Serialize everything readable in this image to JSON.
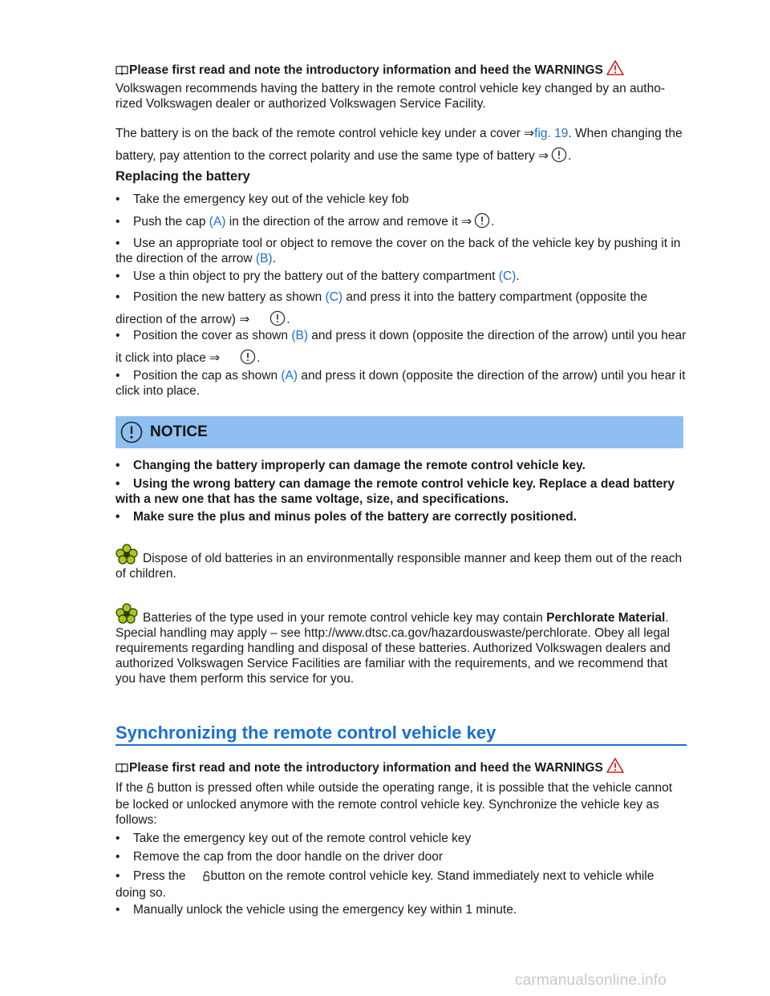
{
  "battery_section": {
    "intro": "Please first read and note the introductory information and heed the WARNINGS",
    "para1": "Volkswagen recommends having the battery in the remote control vehicle key changed by an autho-rized Volkswagen dealer or authorized Volkswagen Service Facility.",
    "para2_a": "The battery is on the back of the remote control vehicle key under a cover ⇒",
    "para2_fig": "fig. 19",
    "para2_b": ". When changing the battery, pay attention to the correct polarity and use the same type of battery ⇒",
    "para2_c": ".",
    "heading": "Replacing the battery",
    "steps": {
      "s1": "Take the emergency key out of the vehicle key fob",
      "s2_a": "Push the cap ",
      "s2_ref": "(A)",
      "s2_b": " in the direction of the arrow and remove it ⇒",
      "s2_c": ".",
      "s3_a": "Use an appropriate tool or object to remove the cover on the back of the vehicle key by pushing it in the direction of the arrow ",
      "s3_ref": "(B)",
      "s3_b": ".",
      "s4_a": "Use a thin object to pry the battery out of the battery compartment ",
      "s4_ref": "(C)",
      "s4_b": ".",
      "s5_a": "Position the new battery as shown ",
      "s5_ref": "(C)",
      "s5_b": " and press it into the battery compartment (opposite the direction of the arrow) ⇒",
      "s5_c": ".",
      "s6_a": "Position the cover as shown ",
      "s6_ref": "(B)",
      "s6_b": " and press it down (opposite the direction of the arrow) until you hear it click into place ⇒",
      "s6_c": ".",
      "s7_a": "Position the cap as shown ",
      "s7_ref": "(A)",
      "s7_b": " and press it down (opposite the direction of the arrow) until you hear it click into place."
    }
  },
  "notice": {
    "title": "NOTICE",
    "items": [
      "Changing the battery improperly can damage the remote control vehicle key.",
      "Using the wrong battery can damage the remote control vehicle key. Replace a dead battery with a new one that has the same voltage, size, and specifications.",
      "Make sure the plus and minus poles of the battery are correctly positioned."
    ]
  },
  "env1": "Dispose of old batteries in an environmentally responsible manner and keep them out of the reach of children.",
  "env2_a": "Batteries of the type used in your remote control vehicle key may contain ",
  "env2_bold": "Perchlorate Material",
  "env2_b": ". Special handling may apply – see http://www.dtsc.ca.gov/hazardouswaste/perchlorate. Obey all legal requirements regarding handling and disposal of these batteries. Authorized Volkswagen dealers and authorized Volkswagen Service Facilities are familiar with the requirements, and we recommend that you have them perform this service for you.",
  "sync_section": {
    "title": "Synchronizing the remote control vehicle key",
    "intro": "Please first read and note the introductory information and heed the WARNINGS",
    "para_a": "If the ",
    "para_b": " button is pressed often while outside the operating range, it is possible that the vehicle cannot be locked or unlocked anymore with the remote control vehicle key. Synchronize the vehicle key as follows:",
    "steps": {
      "s1": "Take the emergency key out of the remote control vehicle key",
      "s2": "Remove the cap from the door handle on the driver door",
      "s3_a": "Press the",
      "s3_b": "button on the remote control vehicle key. Stand immediately next to vehicle while doing so.",
      "s4": "Manually unlock the vehicle using the emergency key within 1 minute."
    }
  },
  "bullet_char": "•",
  "watermark": "carmanualsonline.info",
  "colors": {
    "link": "#1a6fd0",
    "notice_bg": "#8fbff0",
    "env_icon": "#a8c81e"
  }
}
